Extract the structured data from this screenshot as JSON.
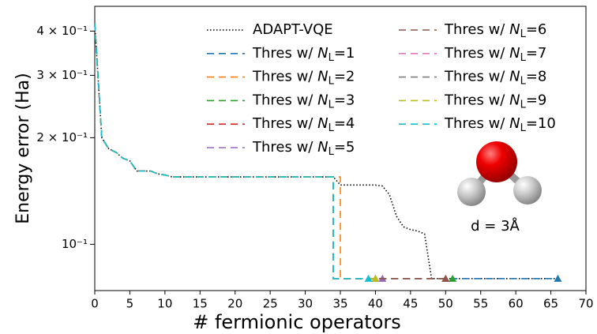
{
  "chart_data": {
    "type": "line",
    "xlabel": "# fermionic operators",
    "ylabel": "Energy error (Ha)",
    "xlim": [
      0,
      70
    ],
    "xticks": [
      0,
      5,
      10,
      15,
      20,
      25,
      30,
      35,
      40,
      45,
      50,
      55,
      60,
      65,
      70
    ],
    "ylim": [
      0.074,
      0.47
    ],
    "yscale": "log",
    "yticks": [
      {
        "value": 0.1,
        "label": "10⁻¹"
      },
      {
        "value": 0.2,
        "label": "2 × 10⁻¹"
      },
      {
        "value": 0.3,
        "label": "3 × 10⁻¹"
      },
      {
        "value": 0.4,
        "label": "4 × 10⁻¹"
      }
    ],
    "annotation": "d = 3Å",
    "end_marker": "triangle",
    "series": [
      {
        "name": "ADAPT-VQE",
        "color": "#000000",
        "linestyle": "dotted",
        "end_marker": false,
        "x": [
          0,
          1,
          2,
          3,
          4,
          5,
          6,
          8,
          9,
          10,
          11,
          34,
          35,
          40,
          41,
          42,
          43,
          44,
          45,
          46,
          47,
          48,
          66
        ],
        "values": [
          0.42,
          0.2,
          0.186,
          0.182,
          0.175,
          0.172,
          0.161,
          0.161,
          0.158,
          0.157,
          0.155,
          0.155,
          0.147,
          0.147,
          0.146,
          0.138,
          0.12,
          0.112,
          0.11,
          0.109,
          0.107,
          0.08,
          0.08
        ]
      },
      {
        "name": "Thres w/ N_L=1",
        "color": "#1f77b4",
        "linestyle": "dashed",
        "x": [
          0,
          1,
          2,
          3,
          4,
          5,
          6,
          8,
          9,
          10,
          11,
          34,
          34,
          66
        ],
        "values": [
          0.42,
          0.2,
          0.186,
          0.182,
          0.175,
          0.172,
          0.161,
          0.161,
          0.158,
          0.157,
          0.155,
          0.155,
          0.08,
          0.08
        ]
      },
      {
        "name": "Thres w/ N_L=2",
        "color": "#ff7f0e",
        "linestyle": "dashed",
        "x": [
          0,
          1,
          2,
          3,
          4,
          5,
          6,
          8,
          9,
          10,
          11,
          35,
          35,
          40
        ],
        "values": [
          0.42,
          0.2,
          0.186,
          0.182,
          0.175,
          0.172,
          0.161,
          0.161,
          0.158,
          0.157,
          0.155,
          0.155,
          0.08,
          0.08
        ]
      },
      {
        "name": "Thres w/ N_L=3",
        "color": "#2ca02c",
        "linestyle": "dashed",
        "x": [
          0,
          1,
          2,
          3,
          4,
          5,
          6,
          8,
          9,
          10,
          11,
          34,
          34,
          51
        ],
        "values": [
          0.42,
          0.2,
          0.186,
          0.182,
          0.175,
          0.172,
          0.161,
          0.161,
          0.158,
          0.157,
          0.155,
          0.155,
          0.08,
          0.08
        ]
      },
      {
        "name": "Thres w/ N_L=4",
        "color": "#d62728",
        "linestyle": "dashed",
        "x": [
          0,
          1,
          2,
          3,
          4,
          5,
          6,
          8,
          9,
          10,
          11,
          34,
          34,
          50
        ],
        "values": [
          0.42,
          0.2,
          0.186,
          0.182,
          0.175,
          0.172,
          0.161,
          0.161,
          0.158,
          0.157,
          0.155,
          0.155,
          0.08,
          0.08
        ]
      },
      {
        "name": "Thres w/ N_L=5",
        "color": "#9467bd",
        "linestyle": "dashed",
        "x": [
          0,
          1,
          2,
          3,
          4,
          5,
          6,
          8,
          9,
          10,
          11,
          34,
          34,
          41
        ],
        "values": [
          0.42,
          0.2,
          0.186,
          0.182,
          0.175,
          0.172,
          0.161,
          0.161,
          0.158,
          0.157,
          0.155,
          0.155,
          0.08,
          0.08
        ]
      },
      {
        "name": "Thres w/ N_L=6",
        "color": "#8c564b",
        "linestyle": "dashed",
        "x": [
          0,
          1,
          2,
          3,
          4,
          5,
          6,
          8,
          9,
          10,
          11,
          34,
          34,
          50
        ],
        "values": [
          0.42,
          0.2,
          0.186,
          0.182,
          0.175,
          0.172,
          0.161,
          0.161,
          0.158,
          0.157,
          0.155,
          0.155,
          0.08,
          0.08
        ]
      },
      {
        "name": "Thres w/ N_L=7",
        "color": "#e377c2",
        "linestyle": "dashed",
        "x": [
          0,
          1,
          2,
          3,
          4,
          5,
          6,
          8,
          9,
          10,
          11,
          34,
          34,
          40
        ],
        "values": [
          0.42,
          0.2,
          0.186,
          0.182,
          0.175,
          0.172,
          0.161,
          0.161,
          0.158,
          0.157,
          0.155,
          0.155,
          0.08,
          0.08
        ]
      },
      {
        "name": "Thres w/ N_L=8",
        "color": "#7f7f7f",
        "linestyle": "dashed",
        "x": [
          0,
          1,
          2,
          3,
          4,
          5,
          6,
          8,
          9,
          10,
          11,
          34,
          34,
          40
        ],
        "values": [
          0.42,
          0.2,
          0.186,
          0.182,
          0.175,
          0.172,
          0.161,
          0.161,
          0.158,
          0.157,
          0.155,
          0.155,
          0.08,
          0.08
        ]
      },
      {
        "name": "Thres w/ N_L=9",
        "color": "#bcbd22",
        "linestyle": "dashed",
        "x": [
          0,
          1,
          2,
          3,
          4,
          5,
          6,
          8,
          9,
          10,
          11,
          34,
          34,
          40
        ],
        "values": [
          0.42,
          0.2,
          0.186,
          0.182,
          0.175,
          0.172,
          0.161,
          0.161,
          0.158,
          0.157,
          0.155,
          0.155,
          0.08,
          0.08
        ]
      },
      {
        "name": "Thres w/ N_L=10",
        "color": "#17becf",
        "linestyle": "dashed",
        "x": [
          0,
          1,
          2,
          3,
          4,
          5,
          6,
          8,
          9,
          10,
          11,
          34,
          34,
          39
        ],
        "values": [
          0.42,
          0.2,
          0.186,
          0.182,
          0.175,
          0.172,
          0.161,
          0.161,
          0.158,
          0.157,
          0.155,
          0.155,
          0.08,
          0.08
        ]
      }
    ]
  }
}
